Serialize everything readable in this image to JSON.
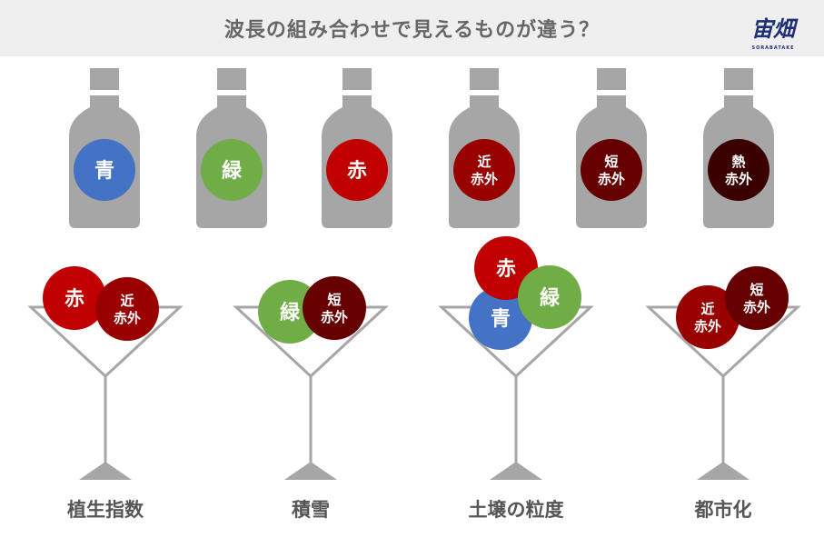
{
  "title": "波長の組み合わせで見えるものが違う？",
  "logo": {
    "text": "宙畑",
    "subtext": "SORABATAKE",
    "color": "#1f2f7a",
    "accent": "#2aa7d8"
  },
  "colors": {
    "bottle": "#a6a6a6",
    "glass": "#a6a6a6",
    "label": "#555555"
  },
  "bands": {
    "blue": {
      "lines": [
        "青"
      ],
      "color": "#4472c4"
    },
    "green": {
      "lines": [
        "緑"
      ],
      "color": "#70ad47"
    },
    "red": {
      "lines": [
        "赤"
      ],
      "color": "#c00000"
    },
    "nir": {
      "lines": [
        "近",
        "赤外"
      ],
      "color": "#990000"
    },
    "swir": {
      "lines": [
        "短",
        "赤外"
      ],
      "color": "#660000"
    },
    "tir": {
      "lines": [
        "熱",
        "赤外"
      ],
      "color": "#3a0000"
    }
  },
  "bottles": [
    "blue",
    "green",
    "red",
    "nir",
    "swir",
    "tir"
  ],
  "glasses": [
    {
      "label": "植生指数",
      "bands": [
        "red",
        "nir"
      ]
    },
    {
      "label": "積雪",
      "bands": [
        "green",
        "swir"
      ]
    },
    {
      "label": "土壌の粒度",
      "bands": [
        "blue",
        "red",
        "green"
      ]
    },
    {
      "label": "都市化",
      "bands": [
        "nir",
        "swir"
      ]
    }
  ]
}
